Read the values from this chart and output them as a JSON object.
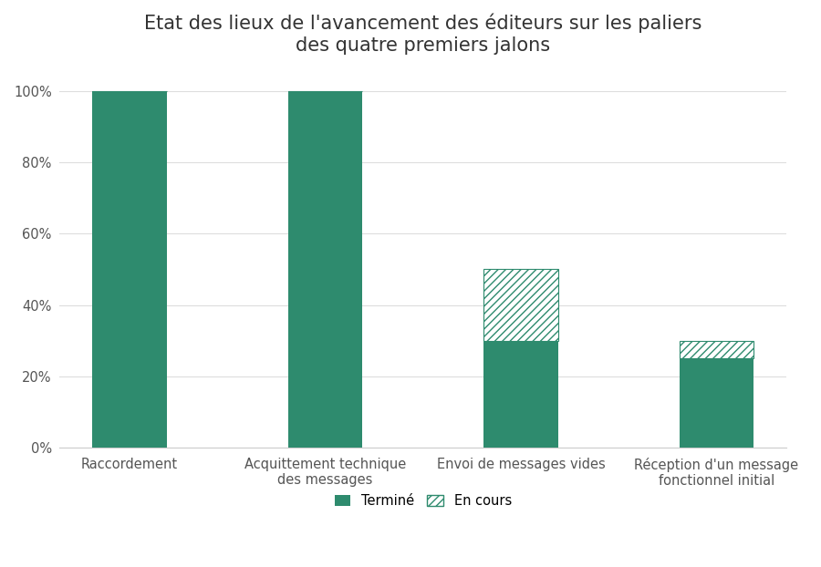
{
  "title": "Etat des lieux de l'avancement des éditeurs sur les paliers\ndes quatre premiers jalons",
  "categories": [
    "Raccordement",
    "Acquittement technique\ndes messages",
    "Envoi de messages vides",
    "Réception d'un message\nfonctionnel initial"
  ],
  "termine": [
    1.0,
    1.0,
    0.3,
    0.25
  ],
  "en_cours": [
    0.0,
    0.0,
    0.2,
    0.05
  ],
  "color_termine": "#2e8b6e",
  "color_en_cours": "#2e8b6e",
  "background_color": "#ffffff",
  "yticks": [
    0.0,
    0.2,
    0.4,
    0.6,
    0.8,
    1.0
  ],
  "ytick_labels": [
    "0%",
    "20%",
    "40%",
    "60%",
    "80%",
    "100%"
  ],
  "legend_termine": "Terminé",
  "legend_en_cours": "En cours",
  "title_fontsize": 15,
  "tick_fontsize": 10.5,
  "legend_fontsize": 10.5,
  "bar_width": 0.38
}
